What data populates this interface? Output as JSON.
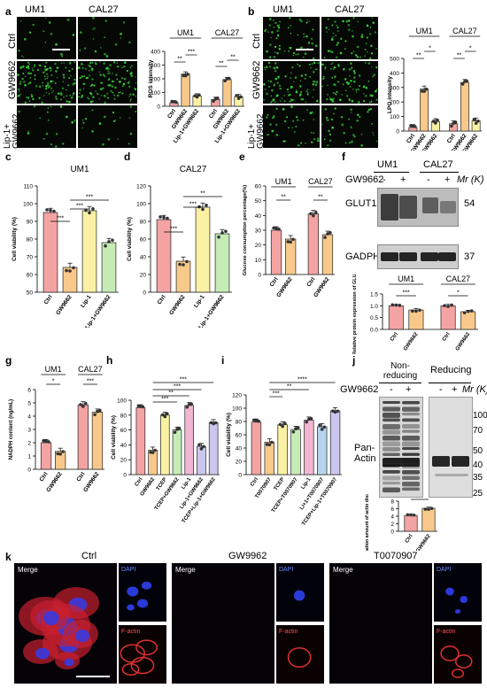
{
  "panels": {
    "a": {
      "label": "a",
      "cols": [
        "UM1",
        "CAL27"
      ],
      "rows": [
        "Ctrl",
        "GW9662",
        "Lip-1+\nGW9662"
      ],
      "groups": [
        "UM1",
        "CAL27"
      ],
      "ylabel": "ROS intensity",
      "yticks": [
        "0",
        "100",
        "200",
        "300",
        "400"
      ],
      "xticks": [
        "Ctrl",
        "GW9662",
        "Lip-1+GW9662",
        "Ctrl",
        "GW9662",
        "Lip-1+GW9662"
      ],
      "sig": [
        "**",
        "***",
        "**",
        "**"
      ]
    },
    "b": {
      "label": "b",
      "cols": [
        "UM1",
        "CAL27"
      ],
      "rows": [
        "Ctrl",
        "GW9662",
        "Lip-1+\nGW9662"
      ],
      "groups": [
        "UM1",
        "CAL27"
      ],
      "ylabel": "LPO intensity",
      "yticks": [
        "0",
        "100",
        "200",
        "300",
        "400",
        "500"
      ],
      "xticks": [
        "Ctrl",
        "GW9662",
        "Lip-1+GW9662",
        "Ctrl",
        "GW9662",
        "Lip-1+GW9662"
      ],
      "sig": [
        "**",
        "*",
        "**",
        "*"
      ]
    },
    "c": {
      "label": "c",
      "title": "UM1",
      "ylabel": "Cell viability (%)",
      "yticks": [
        "50",
        "60",
        "70",
        "80",
        "90",
        "100",
        "110"
      ],
      "xticks": [
        "Ctrl",
        "GW9662",
        "Lip-1",
        "Lip-1+GW9662"
      ],
      "sig": [
        "***",
        "***",
        "***"
      ]
    },
    "d": {
      "label": "d",
      "title": "CAL27",
      "ylabel": "Cell viability (%)",
      "yticks": [
        "0",
        "20",
        "40",
        "60",
        "80",
        "100",
        "120"
      ],
      "xticks": [
        "Ctrl",
        "GW9662",
        "Lip-1",
        "Lip-1+GW9662"
      ],
      "sig": [
        "***",
        "**",
        "***"
      ]
    },
    "e": {
      "label": "e",
      "groups": [
        "UM1",
        "CAL27"
      ],
      "ylabel": "Glucose consumption percentage(%)",
      "yticks": [
        "0",
        "10",
        "20",
        "30",
        "40",
        "50",
        "60"
      ],
      "xticks": [
        "Ctrl",
        "GW9662",
        "Ctrl",
        "GW9662"
      ],
      "sig": [
        "**",
        "**"
      ]
    },
    "f": {
      "label": "f",
      "groups": [
        "UM1",
        "CAL27"
      ],
      "treat": "GW9662",
      "signs": [
        "-",
        "+",
        "-",
        "+"
      ],
      "mr": "Mr (K)",
      "bands": [
        "GLUT1",
        "GADPH"
      ],
      "kd": [
        "54",
        "37"
      ],
      "ylabel": "Relative protein expression of GLUT1",
      "yticks": [
        "0.0",
        "0.5",
        "1.0",
        "1.5"
      ],
      "xticks": [
        "Ctrl",
        "GW9662",
        "Ctrl",
        "GW9662"
      ],
      "sig": [
        "***",
        "*"
      ]
    },
    "g": {
      "label": "g",
      "groups": [
        "UM1",
        "CAL27"
      ],
      "ylabel": "NADPH content (ng/mL)",
      "yticks": [
        "0",
        "1",
        "2",
        "3",
        "4",
        "5",
        "6"
      ],
      "xticks": [
        "Ctrl",
        "GW9662",
        "Ctrl",
        "GW9662"
      ],
      "sig": [
        "*",
        "***"
      ]
    },
    "h": {
      "label": "h",
      "ylabel": "Cell viability (%)",
      "yticks": [
        "0",
        "20",
        "40",
        "60",
        "80",
        "100"
      ],
      "xticks": [
        "Ctrl",
        "GW9662",
        "TCEP",
        "TCEP+GW9662",
        "Lip-1",
        "Lip-1+GW9662",
        "TCEP+Lip-1+GW9662"
      ],
      "sig": [
        "***",
        "***",
        "**",
        "***"
      ]
    },
    "i": {
      "label": "i",
      "ylabel": "Cell viability (%)",
      "yticks": [
        "0",
        "20",
        "40",
        "60",
        "80",
        "100",
        "120"
      ],
      "xticks": [
        "Ctrl",
        "T0070907",
        "TCEP",
        "TCEP+T0070907",
        "Lip-1",
        "Li+1+T0070907",
        "TCEP+Lip-1+T0070907"
      ],
      "sig": [
        "***",
        "**",
        "****"
      ]
    },
    "j": {
      "label": "j",
      "cond": [
        "Non-\nreducing",
        "Reducing"
      ],
      "treat": "GW9662",
      "signs": [
        "-",
        "+",
        "-",
        "+"
      ],
      "mr": "Mr (K)",
      "band": "Pan-\nActin",
      "kd": [
        "100",
        "70",
        "50",
        "40",
        "35",
        "25"
      ],
      "ylabel": "Formation amount of actin disulfide bond",
      "yticks": [
        "0",
        "2",
        "4",
        "6",
        "8"
      ],
      "xticks": [
        "Ctrl",
        "GW9662"
      ],
      "sig": [
        "**"
      ]
    },
    "k": {
      "label": "k",
      "conds": [
        "Ctrl",
        "GW9962",
        "T0070907"
      ],
      "merge": "Merge",
      "dapi": "DAPI",
      "factin": "F-actin"
    }
  },
  "chart_data": [
    {
      "type": "bar",
      "panel": "a",
      "categories": [
        "UM1 Ctrl",
        "UM1 GW9662",
        "UM1 Lip-1+GW9662",
        "CAL27 Ctrl",
        "CAL27 GW9662",
        "CAL27 Lip-1+GW9662"
      ],
      "values": [
        25,
        235,
        75,
        50,
        195,
        70
      ],
      "ylabel": "ROS intensity",
      "ylim": [
        0,
        400
      ]
    },
    {
      "type": "bar",
      "panel": "b",
      "categories": [
        "UM1 Ctrl",
        "UM1 GW9662",
        "UM1 Lip-1+GW9662",
        "CAL27 Ctrl",
        "CAL27 GW9662",
        "CAL27 Lip-1+GW9662"
      ],
      "values": [
        25,
        290,
        65,
        50,
        335,
        70
      ],
      "ylabel": "LPO intensity",
      "ylim": [
        0,
        500
      ]
    },
    {
      "type": "bar",
      "panel": "c",
      "title": "UM1",
      "categories": [
        "Ctrl",
        "GW9662",
        "Lip-1",
        "Lip-1+GW9662"
      ],
      "values": [
        95,
        64,
        96,
        78
      ],
      "ylabel": "Cell viability (%)",
      "ylim": [
        50,
        110
      ]
    },
    {
      "type": "bar",
      "panel": "d",
      "title": "CAL27",
      "categories": [
        "Ctrl",
        "GW9662",
        "Lip-1",
        "Lip-1+GW9662"
      ],
      "values": [
        82,
        35,
        96,
        66
      ],
      "ylabel": "Cell viability (%)",
      "ylim": [
        0,
        120
      ]
    },
    {
      "type": "bar",
      "panel": "e",
      "categories": [
        "UM1 Ctrl",
        "UM1 GW9662",
        "CAL27 Ctrl",
        "CAL27 GW9662"
      ],
      "values": [
        30,
        24,
        41,
        27
      ],
      "ylabel": "Glucose consumption percentage(%)",
      "ylim": [
        0,
        60
      ]
    },
    {
      "type": "bar",
      "panel": "f",
      "categories": [
        "UM1 Ctrl",
        "UM1 GW9662",
        "CAL27 Ctrl",
        "CAL27 GW9662"
      ],
      "values": [
        1.0,
        0.82,
        1.0,
        0.75
      ],
      "ylabel": "Relative protein expression of GLUT1",
      "ylim": [
        0,
        1.5
      ]
    },
    {
      "type": "bar",
      "panel": "g",
      "categories": [
        "UM1 Ctrl",
        "UM1 GW9662",
        "CAL27 Ctrl",
        "CAL27 GW9662"
      ],
      "values": [
        2.0,
        1.35,
        4.85,
        4.3
      ],
      "ylabel": "NADPH content (ng/mL)",
      "ylim": [
        0,
        6
      ]
    },
    {
      "type": "bar",
      "panel": "h",
      "categories": [
        "Ctrl",
        "GW9662",
        "TCEP",
        "TCEP+GW9662",
        "Lip-1",
        "Lip-1+GW9662",
        "TCEP+Lip-1+GW9662"
      ],
      "values": [
        90,
        33,
        80,
        60,
        93,
        38,
        70
      ],
      "ylabel": "Cell viability (%)",
      "ylim": [
        0,
        100
      ]
    },
    {
      "type": "bar",
      "panel": "i",
      "categories": [
        "Ctrl",
        "T0070907",
        "TCEP",
        "TCEP+T0070907",
        "Lip-1",
        "Li+1+T0070907",
        "TCEP+Lip-1+T0070907"
      ],
      "values": [
        79,
        49,
        75,
        68,
        82,
        72,
        96
      ],
      "ylabel": "Cell viability (%)",
      "ylim": [
        0,
        120
      ]
    },
    {
      "type": "bar",
      "panel": "j",
      "categories": [
        "Ctrl",
        "GW9662"
      ],
      "values": [
        4.2,
        6.1
      ],
      "ylabel": "Formation amount of actin disulfide bond",
      "ylim": [
        0,
        8
      ]
    }
  ],
  "colors": {
    "red": "#f4a3a3",
    "orange": "#f8c98a",
    "yellow": "#fbf1a4",
    "green": "#c6ecb6",
    "purple": "#cac6ee",
    "blue": "#b8d3ef",
    "pink": "#f2b6d2",
    "dot": "#333333"
  }
}
